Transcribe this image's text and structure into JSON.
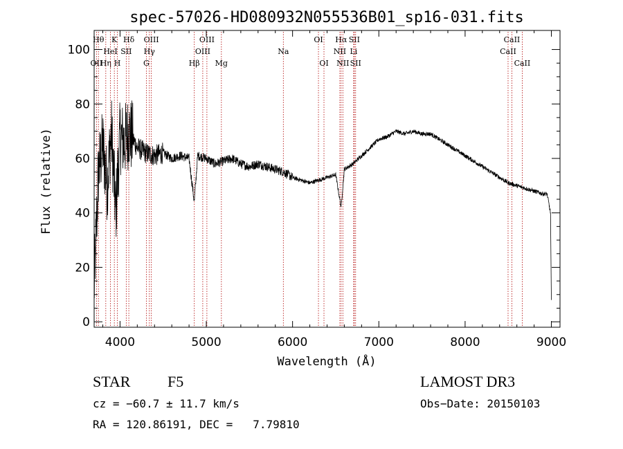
{
  "chart_data": {
    "type": "line",
    "title": "spec-57026-HD080932N055536B01_sp16-031.fits",
    "xlabel": "Wavelength (Å)",
    "ylabel": "Flux (relative)",
    "xlim": [
      3700,
      9100
    ],
    "ylim": [
      -2,
      107
    ],
    "xticks": [
      4000,
      5000,
      6000,
      7000,
      8000,
      9000
    ],
    "yticks": [
      0,
      20,
      40,
      60,
      80,
      100
    ],
    "grid": false,
    "series": [
      {
        "name": "spectrum",
        "x": [
          3700,
          3750,
          3800,
          3850,
          3900,
          3950,
          4000,
          4050,
          4100,
          4200,
          4300,
          4400,
          4500,
          4600,
          4700,
          4800,
          4861,
          4900,
          5000,
          5100,
          5200,
          5300,
          5400,
          5500,
          5600,
          5700,
          5800,
          5900,
          6000,
          6100,
          6200,
          6300,
          6400,
          6500,
          6563,
          6600,
          6700,
          6800,
          6900,
          7000,
          7100,
          7200,
          7300,
          7400,
          7500,
          7600,
          7700,
          7800,
          7900,
          8000,
          8100,
          8200,
          8300,
          8400,
          8500,
          8600,
          8700,
          8800,
          8900,
          8950,
          8990,
          9000
        ],
        "y": [
          12,
          55,
          65,
          50,
          70,
          40,
          68,
          66,
          70,
          64,
          62,
          61,
          62,
          60,
          61,
          60,
          44,
          61,
          60,
          58,
          59,
          60,
          58,
          57,
          58,
          57,
          56,
          55,
          53,
          52,
          51,
          52,
          53,
          54,
          42,
          56,
          58,
          61,
          64,
          67,
          68,
          70,
          69,
          70,
          69,
          69,
          67,
          65,
          63,
          61,
          59,
          57,
          55,
          53,
          51,
          50,
          49,
          48,
          47,
          47,
          40,
          8
        ]
      }
    ],
    "lines": [
      {
        "label": "OII",
        "wavelength": 3727,
        "row": 3
      },
      {
        "label": "Hθ",
        "wavelength": 3750,
        "row": 1
      },
      {
        "label": "Hη",
        "wavelength": 3835,
        "row": 3
      },
      {
        "label": "HeI",
        "wavelength": 3889,
        "row": 2
      },
      {
        "label": "K",
        "wavelength": 3934,
        "row": 1
      },
      {
        "label": "SII",
        "wavelength": 4072,
        "row": 2
      },
      {
        "label": "H",
        "wavelength": 3969,
        "row": 3
      },
      {
        "label": "Hδ",
        "wavelength": 4102,
        "row": 1
      },
      {
        "label": "OIII",
        "wavelength": 4363,
        "row": 1
      },
      {
        "label": "Hγ",
        "wavelength": 4340,
        "row": 2
      },
      {
        "label": "G",
        "wavelength": 4305,
        "row": 3
      },
      {
        "label": "Hβ",
        "wavelength": 4861,
        "row": 3
      },
      {
        "label": "OIII",
        "wavelength": 5007,
        "row": 1
      },
      {
        "label": "OIII",
        "wavelength": 4959,
        "row": 2
      },
      {
        "label": "Mg",
        "wavelength": 5175,
        "row": 3
      },
      {
        "label": "Na",
        "wavelength": 5893,
        "row": 2
      },
      {
        "label": "OI",
        "wavelength": 6300,
        "row": 1
      },
      {
        "label": "OI",
        "wavelength": 6364,
        "row": 3
      },
      {
        "label": "Hα",
        "wavelength": 6563,
        "row": 1
      },
      {
        "label": "NII",
        "wavelength": 6548,
        "row": 2
      },
      {
        "label": "NII",
        "wavelength": 6583,
        "row": 3
      },
      {
        "label": "SII",
        "wavelength": 6716,
        "row": 1
      },
      {
        "label": "Li",
        "wavelength": 6708,
        "row": 2
      },
      {
        "label": "SII",
        "wavelength": 6731,
        "row": 3
      },
      {
        "label": "CaII",
        "wavelength": 8542,
        "row": 1
      },
      {
        "label": "CaII",
        "wavelength": 8498,
        "row": 2
      },
      {
        "label": "CaII",
        "wavelength": 8662,
        "row": 3
      }
    ]
  },
  "info": {
    "class_label": "STAR",
    "subclass": "F5",
    "survey": "LAMOST DR3",
    "cz": "cz = −60.7 ± 11.7 km/s",
    "obs_date": "Obs−Date: 20150103",
    "coords": "RA = 120.86191, DEC =   7.79810"
  }
}
